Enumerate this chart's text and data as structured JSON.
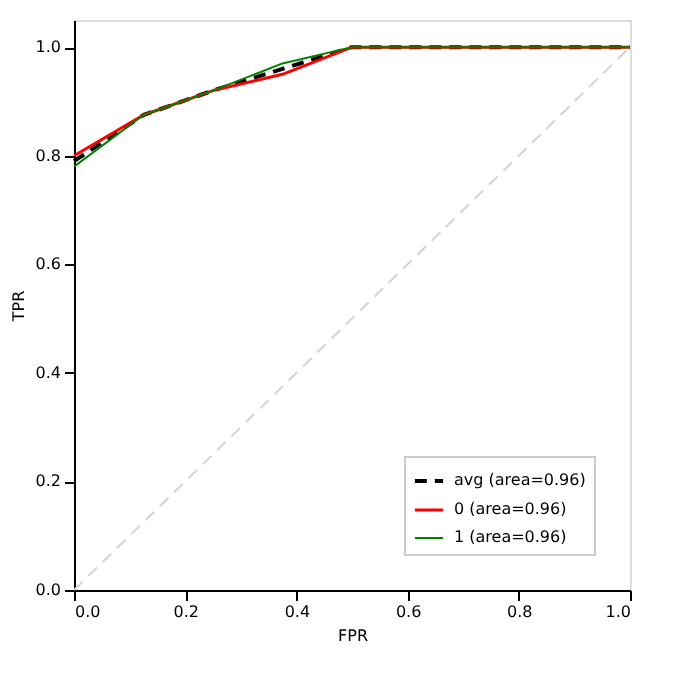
{
  "chart_data": {
    "type": "line",
    "xlabel": "FPR",
    "ylabel": "TPR",
    "xlim": [
      0,
      1
    ],
    "ylim": [
      0,
      1.05
    ],
    "xticks": [
      {
        "value": 0,
        "label": "0.0"
      },
      0.2,
      0.4,
      0.6,
      0.8,
      {
        "value": 1,
        "label": "1.0"
      }
    ],
    "yticks": [
      {
        "value": 0,
        "label": "0.0"
      },
      0.2,
      0.4,
      0.6,
      0.8,
      {
        "value": 1,
        "label": "1.0"
      }
    ],
    "grid": false,
    "legend": "bottom right",
    "marker": "none",
    "series": [
      {
        "name": "avg (area=0.96)",
        "color": "#000000",
        "line_style": "dashed",
        "x": [
          0,
          0.125,
          0.25,
          0.375,
          0.5,
          1
        ],
        "values": [
          0.79,
          0.875,
          0.92,
          0.96,
          1.0,
          1.0
        ]
      },
      {
        "name": "0 (area=0.96)",
        "color": "#ff0000",
        "line_style": "solid",
        "x": [
          0,
          0.125,
          0.25,
          0.375,
          0.5,
          1
        ],
        "values": [
          0.8,
          0.875,
          0.92,
          0.95,
          1.0,
          1.0
        ]
      },
      {
        "name": "1 (area=0.96)",
        "color": "#008000",
        "line_style": "solid",
        "x": [
          0,
          0.125,
          0.25,
          0.375,
          0.5,
          1
        ],
        "values": [
          0.78,
          0.875,
          0.92,
          0.97,
          1.0,
          1.0
        ]
      },
      {
        "color": "#d3d3d3",
        "line_style": "dashed",
        "x": [
          0,
          1
        ],
        "values": [
          0,
          1
        ]
      }
    ]
  }
}
